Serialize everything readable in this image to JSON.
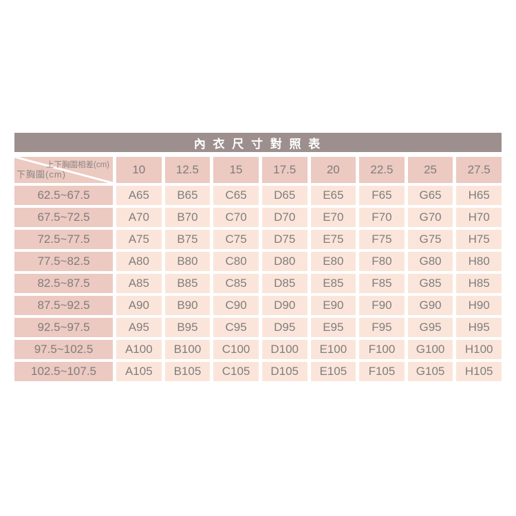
{
  "page": {
    "background": "#ffffff"
  },
  "colors": {
    "title_bar_bg": "#9c8f8d",
    "title_text": "#ffffff",
    "header_cell_bg": "#ecc9c1",
    "data_cell_bg": "#fbe5da",
    "cell_text": "#7f7d7c",
    "diag_label_text": "#8b8683",
    "gap_color": "#ffffff"
  },
  "chart_data": {
    "type": "table",
    "title": "內 衣 尺 寸 對 照 表",
    "col_axis_label": "上下胸圍相差(cm)",
    "row_axis_label": "下胸圍(cm)",
    "columns": [
      "10",
      "12.5",
      "15",
      "17.5",
      "20",
      "22.5",
      "25",
      "27.5"
    ],
    "rows": [
      {
        "band": "62.5~67.5",
        "cells": [
          "A65",
          "B65",
          "C65",
          "D65",
          "E65",
          "F65",
          "G65",
          "H65"
        ]
      },
      {
        "band": "67.5~72.5",
        "cells": [
          "A70",
          "B70",
          "C70",
          "D70",
          "E70",
          "F70",
          "G70",
          "H70"
        ]
      },
      {
        "band": "72.5~77.5",
        "cells": [
          "A75",
          "B75",
          "C75",
          "D75",
          "E75",
          "F75",
          "G75",
          "H75"
        ]
      },
      {
        "band": "77.5~82.5",
        "cells": [
          "A80",
          "B80",
          "C80",
          "D80",
          "E80",
          "F80",
          "G80",
          "H80"
        ]
      },
      {
        "band": "82.5~87.5",
        "cells": [
          "A85",
          "B85",
          "C85",
          "D85",
          "E85",
          "F85",
          "G85",
          "H85"
        ]
      },
      {
        "band": "87.5~92.5",
        "cells": [
          "A90",
          "B90",
          "C90",
          "D90",
          "E90",
          "F90",
          "G90",
          "H90"
        ]
      },
      {
        "band": "92.5~97.5",
        "cells": [
          "A95",
          "B95",
          "C95",
          "D95",
          "E95",
          "F95",
          "G95",
          "H95"
        ]
      },
      {
        "band": "97.5~102.5",
        "cells": [
          "A100",
          "B100",
          "C100",
          "D100",
          "E100",
          "F100",
          "G100",
          "H100"
        ]
      },
      {
        "band": "102.5~107.5",
        "cells": [
          "A105",
          "B105",
          "C105",
          "D105",
          "E105",
          "F105",
          "G105",
          "H105"
        ]
      }
    ]
  }
}
